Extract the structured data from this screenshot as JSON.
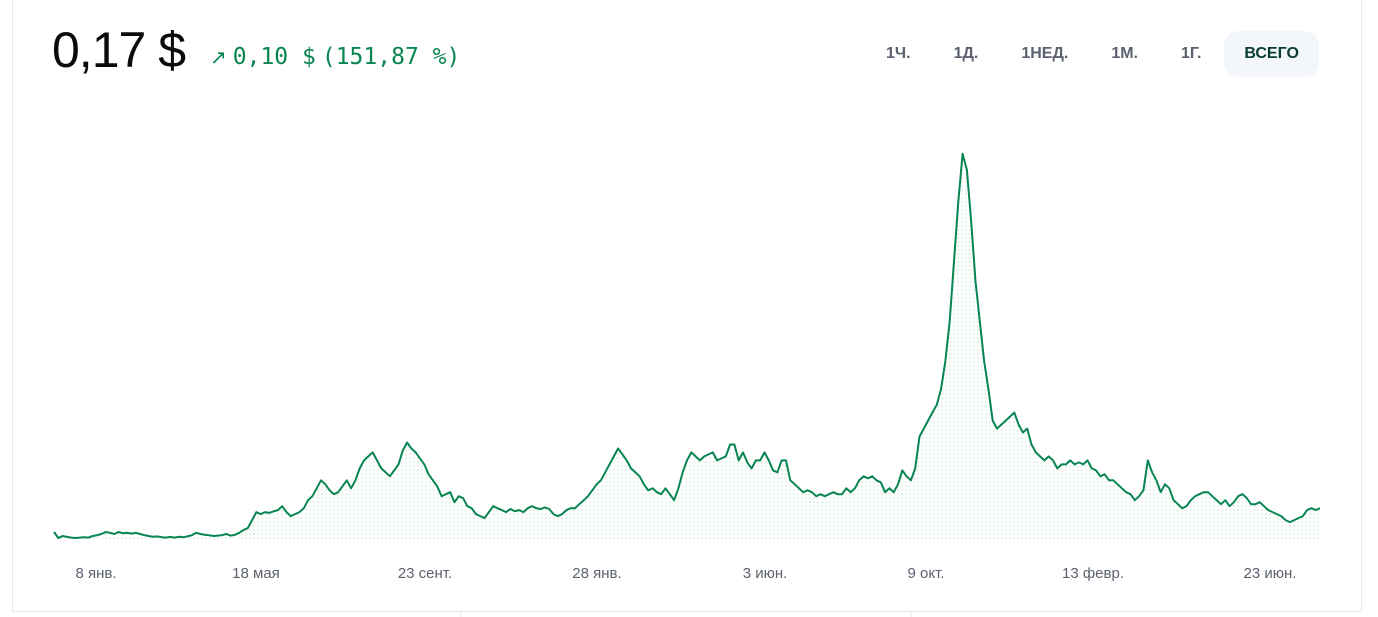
{
  "price": {
    "value": "0,17 $"
  },
  "change": {
    "arrow": "↗",
    "amount": "0,10 $",
    "percent": "(151,87 %)"
  },
  "ranges": [
    {
      "label": "1Ч.",
      "active": false
    },
    {
      "label": "1Д.",
      "active": false
    },
    {
      "label": "1НЕД.",
      "active": false
    },
    {
      "label": "1М.",
      "active": false
    },
    {
      "label": "1Г.",
      "active": false
    },
    {
      "label": "ВСЕГО",
      "active": true
    }
  ],
  "colors": {
    "line": "#098551",
    "fill_dots": "#c9e3d6",
    "accent": "#098551"
  },
  "chart_data": {
    "type": "area",
    "x_tick_labels": [
      "8 янв.",
      "18 мая",
      "23 сент.",
      "28 янв.",
      "3 июн.",
      "9 окт.",
      "13 февр.",
      "23 июн."
    ],
    "x_range": [
      0,
      100
    ],
    "ylim": [
      0,
      1
    ],
    "y": [
      0.02,
      0.005,
      0.01,
      0.008,
      0.006,
      0.005,
      0.006,
      0.007,
      0.006,
      0.01,
      0.012,
      0.015,
      0.02,
      0.018,
      0.015,
      0.02,
      0.017,
      0.018,
      0.016,
      0.018,
      0.015,
      0.012,
      0.01,
      0.008,
      0.009,
      0.007,
      0.006,
      0.008,
      0.006,
      0.008,
      0.007,
      0.009,
      0.012,
      0.018,
      0.015,
      0.013,
      0.012,
      0.01,
      0.011,
      0.012,
      0.015,
      0.011,
      0.013,
      0.018,
      0.025,
      0.03,
      0.05,
      0.07,
      0.065,
      0.07,
      0.068,
      0.072,
      0.075,
      0.085,
      0.07,
      0.06,
      0.065,
      0.07,
      0.08,
      0.1,
      0.11,
      0.13,
      0.15,
      0.14,
      0.125,
      0.115,
      0.12,
      0.135,
      0.15,
      0.13,
      0.15,
      0.18,
      0.2,
      0.21,
      0.22,
      0.2,
      0.18,
      0.17,
      0.16,
      0.175,
      0.19,
      0.225,
      0.245,
      0.23,
      0.22,
      0.205,
      0.19,
      0.165,
      0.15,
      0.135,
      0.11,
      0.115,
      0.12,
      0.095,
      0.11,
      0.105,
      0.085,
      0.08,
      0.065,
      0.06,
      0.055,
      0.07,
      0.085,
      0.08,
      0.075,
      0.07,
      0.078,
      0.072,
      0.075,
      0.07,
      0.08,
      0.085,
      0.08,
      0.078,
      0.082,
      0.078,
      0.065,
      0.06,
      0.065,
      0.075,
      0.08,
      0.08,
      0.09,
      0.1,
      0.11,
      0.125,
      0.14,
      0.15,
      0.17,
      0.19,
      0.21,
      0.23,
      0.215,
      0.2,
      0.18,
      0.17,
      0.16,
      0.14,
      0.125,
      0.13,
      0.12,
      0.115,
      0.13,
      0.115,
      0.1,
      0.13,
      0.17,
      0.2,
      0.22,
      0.21,
      0.2,
      0.21,
      0.215,
      0.22,
      0.2,
      0.205,
      0.21,
      0.24,
      0.24,
      0.2,
      0.22,
      0.195,
      0.18,
      0.2,
      0.2,
      0.22,
      0.2,
      0.175,
      0.17,
      0.2,
      0.2,
      0.15,
      0.14,
      0.13,
      0.12,
      0.125,
      0.12,
      0.11,
      0.115,
      0.11,
      0.115,
      0.12,
      0.115,
      0.115,
      0.13,
      0.12,
      0.13,
      0.15,
      0.16,
      0.155,
      0.16,
      0.15,
      0.145,
      0.12,
      0.13,
      0.12,
      0.14,
      0.175,
      0.16,
      0.15,
      0.18,
      0.26,
      0.28,
      0.3,
      0.32,
      0.34,
      0.38,
      0.45,
      0.55,
      0.7,
      0.85,
      0.97,
      0.93,
      0.8,
      0.65,
      0.55,
      0.45,
      0.38,
      0.3,
      0.28,
      0.29,
      0.3,
      0.31,
      0.32,
      0.29,
      0.27,
      0.28,
      0.24,
      0.22,
      0.21,
      0.2,
      0.21,
      0.2,
      0.18,
      0.19,
      0.19,
      0.2,
      0.19,
      0.195,
      0.19,
      0.2,
      0.18,
      0.175,
      0.16,
      0.165,
      0.15,
      0.15,
      0.14,
      0.13,
      0.12,
      0.115,
      0.1,
      0.11,
      0.125,
      0.2,
      0.17,
      0.15,
      0.12,
      0.14,
      0.13,
      0.1,
      0.09,
      0.08,
      0.085,
      0.1,
      0.11,
      0.115,
      0.12,
      0.12,
      0.11,
      0.1,
      0.09,
      0.1,
      0.085,
      0.095,
      0.11,
      0.115,
      0.105,
      0.09,
      0.09,
      0.095,
      0.085,
      0.075,
      0.07,
      0.065,
      0.06,
      0.05,
      0.045,
      0.05,
      0.055,
      0.06,
      0.075,
      0.08,
      0.075,
      0.08
    ]
  }
}
